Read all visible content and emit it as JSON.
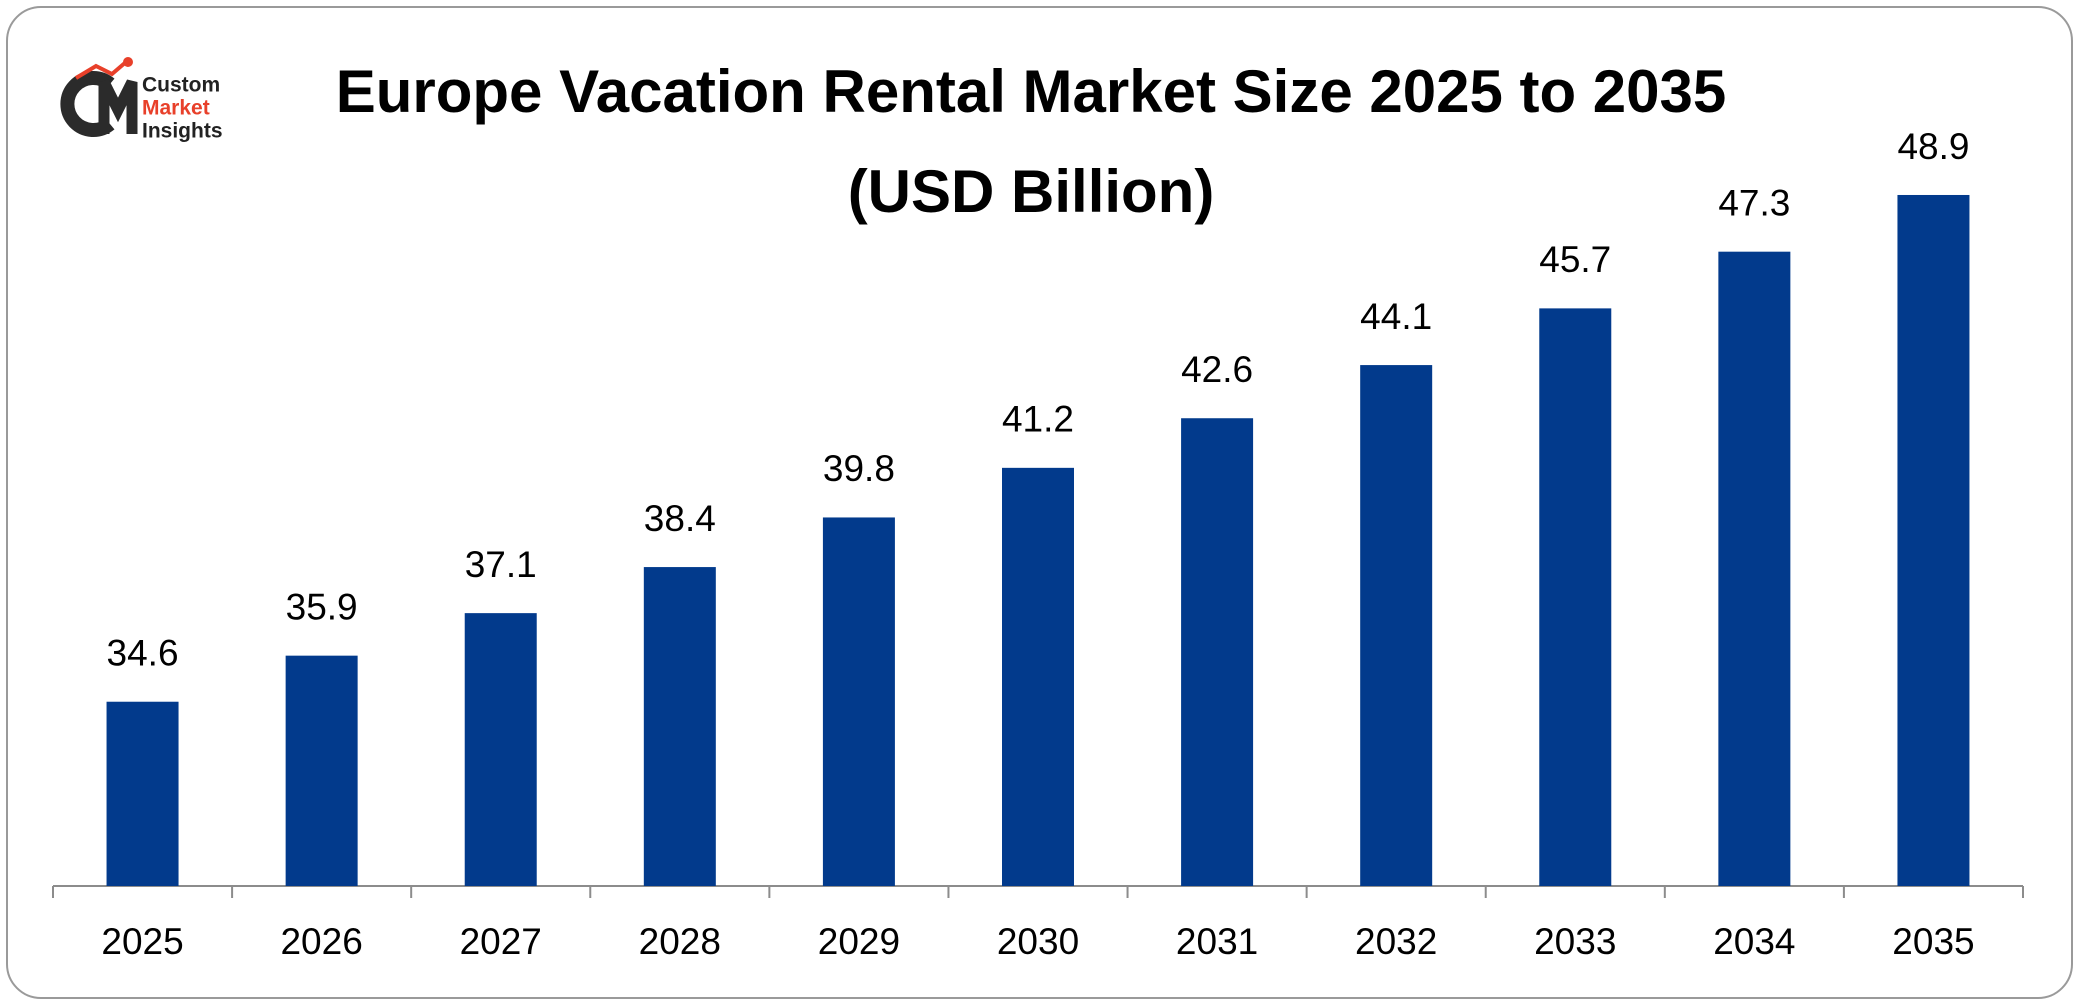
{
  "logo": {
    "lines": [
      "Custom",
      "Market",
      "Insights"
    ]
  },
  "chart_data": {
    "type": "bar",
    "title": "Europe Vacation Rental Market Size 2025 to 2035 (USD Billion)",
    "categories": [
      "2025",
      "2026",
      "2027",
      "2028",
      "2029",
      "2030",
      "2031",
      "2032",
      "2033",
      "2034",
      "2035"
    ],
    "values": [
      34.6,
      35.9,
      37.1,
      38.4,
      39.8,
      41.2,
      42.6,
      44.1,
      45.7,
      47.3,
      48.9
    ],
    "color": "#023a8c",
    "ylim": [
      29.4,
      50
    ],
    "data_labels": true
  }
}
